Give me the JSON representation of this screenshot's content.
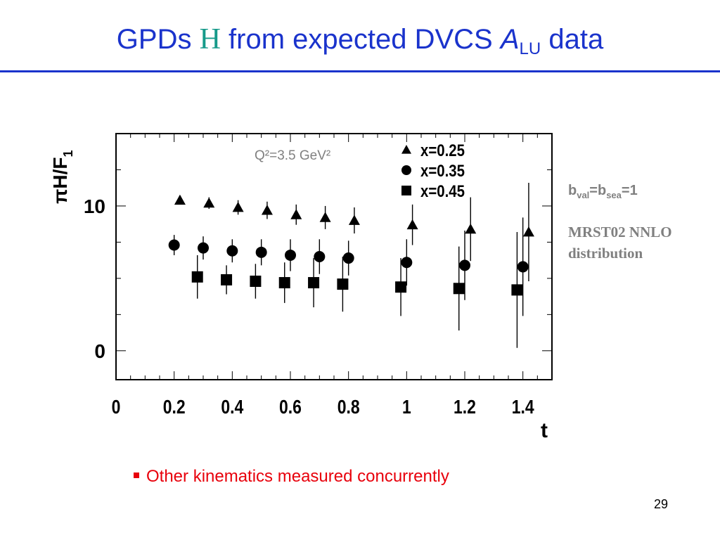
{
  "slide": {
    "title_pre": "GPDs ",
    "title_h": "H",
    "title_mid": " from expected DVCS ",
    "title_a": "A",
    "title_sub": "LU",
    "title_post": " data",
    "bullet": "Other kinematics measured concurrently",
    "page_number": "29",
    "param_b1": "b",
    "param_s1": "val",
    "param_eq": "=b",
    "param_s2": "sea",
    "param_end": "=1",
    "model_line1": "MRST02 NNLO",
    "model_line2": "distribution",
    "accent_color": "#1a33cc",
    "bullet_color": "#e8000b"
  },
  "chart_data": {
    "type": "scatter",
    "xlabel": "t",
    "ylabel": "πH/F",
    "ylabel_sub": "1",
    "annotation": "Q²=3.5 GeV²",
    "xlim": [
      0,
      1.5
    ],
    "ylim": [
      -2,
      15
    ],
    "xticks": [
      0,
      0.2,
      0.4,
      0.6,
      0.8,
      1,
      1.2,
      1.4
    ],
    "xtick_labels": [
      "0",
      "0.2",
      "0.4",
      "0.6",
      "0.8",
      "1",
      "1.2",
      "1.4"
    ],
    "yticks": [
      0,
      10
    ],
    "ytick_labels": [
      "0",
      "10"
    ],
    "legend_position": "top-right",
    "series": [
      {
        "name": "x=0.25",
        "marker": "triangle",
        "x": [
          0.22,
          0.32,
          0.42,
          0.52,
          0.62,
          0.72,
          0.82,
          1.02,
          1.22,
          1.42
        ],
        "y": [
          10.4,
          10.2,
          9.9,
          9.7,
          9.4,
          9.2,
          9.0,
          8.7,
          8.4,
          8.2
        ],
        "err": [
          0.3,
          0.4,
          0.5,
          0.6,
          0.7,
          0.8,
          0.9,
          1.4,
          2.2,
          3.4
        ]
      },
      {
        "name": "x=0.35",
        "marker": "circle",
        "x": [
          0.2,
          0.3,
          0.4,
          0.5,
          0.6,
          0.7,
          0.8,
          1.0,
          1.2,
          1.4
        ],
        "y": [
          7.3,
          7.1,
          6.9,
          6.8,
          6.6,
          6.5,
          6.4,
          6.1,
          5.9,
          5.8
        ],
        "err": [
          0.7,
          0.8,
          0.8,
          0.9,
          1.1,
          1.2,
          1.2,
          1.6,
          2.4,
          3.4
        ]
      },
      {
        "name": "x=0.45",
        "marker": "square",
        "x": [
          0.28,
          0.38,
          0.48,
          0.58,
          0.68,
          0.78,
          0.98,
          1.18,
          1.38
        ],
        "y": [
          5.1,
          4.9,
          4.8,
          4.7,
          4.7,
          4.6,
          4.4,
          4.3,
          4.2
        ],
        "err": [
          1.5,
          1.0,
          1.2,
          1.4,
          1.7,
          1.9,
          2.0,
          2.9,
          4.0
        ]
      }
    ]
  }
}
